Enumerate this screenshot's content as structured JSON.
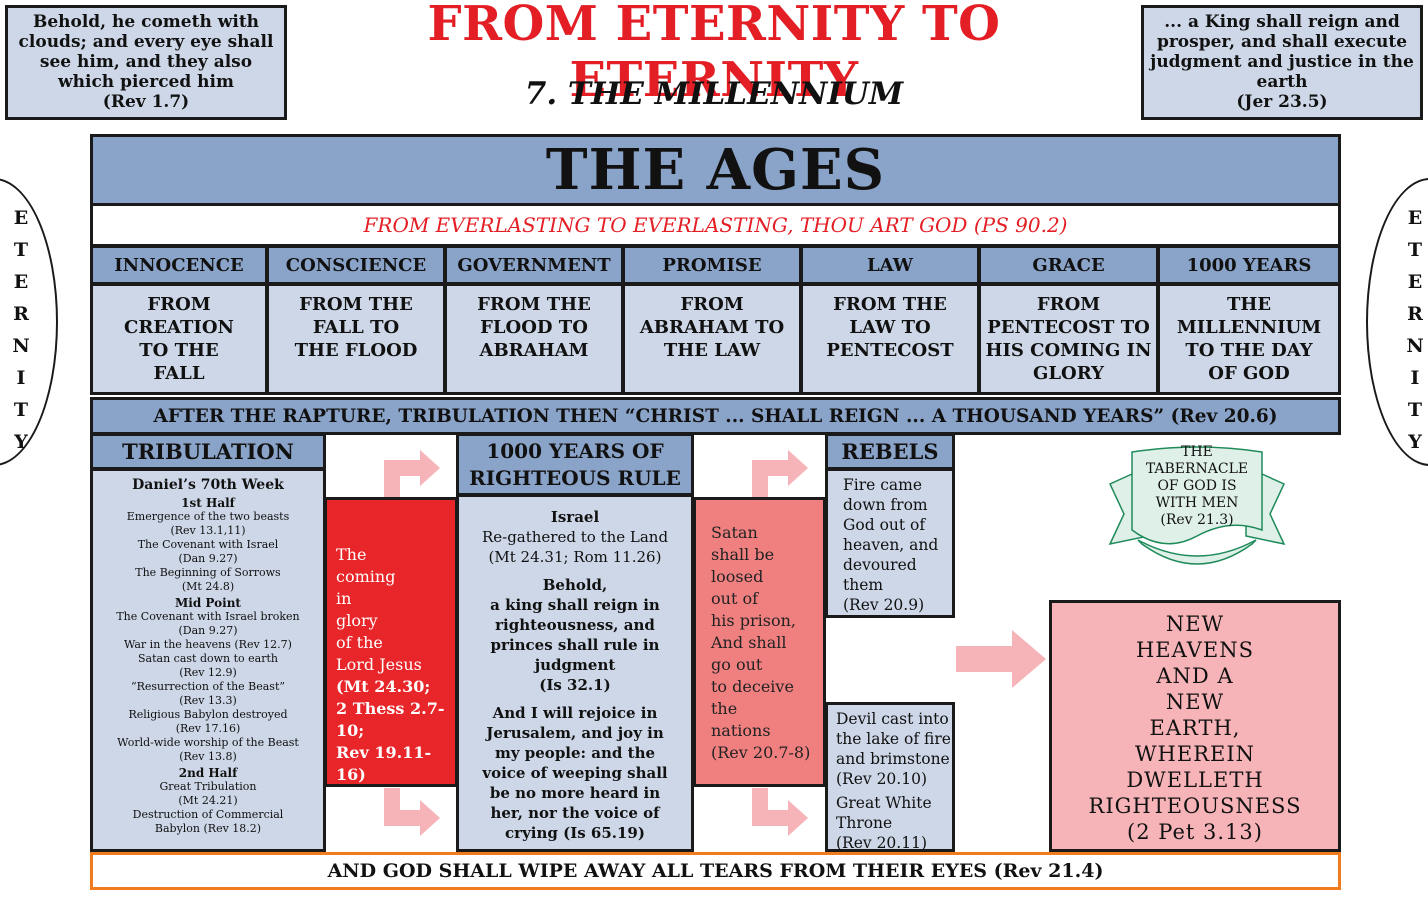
{
  "header": {
    "title": "FROM ETERNITY TO ETERNITY",
    "subtitle": "7. THE MILLENNIUM",
    "left_quote": "Behold, he cometh with clouds; and every eye shall see him, and they also which pierced him",
    "left_ref": "(Rev 1.7)",
    "right_quote": "... a King shall reign and prosper, and shall execute judgment and justice in the earth",
    "right_ref": "(Jer 23.5)"
  },
  "eternity_letters": [
    "E",
    "T",
    "E",
    "R",
    "N",
    "I",
    "T",
    "Y"
  ],
  "ages_banner": {
    "title": "THE AGES",
    "verse": "FROM EVERLASTING TO EVERLASTING, THOU ART GOD (PS 90.2)"
  },
  "ages": [
    {
      "name": "INNOCENCE",
      "lines": [
        "FROM",
        "CREATION",
        "TO THE",
        "FALL"
      ]
    },
    {
      "name": "CONSCIENCE",
      "lines": [
        "FROM THE",
        "FALL TO",
        "THE FLOOD"
      ]
    },
    {
      "name": "GOVERNMENT",
      "lines": [
        "FROM THE",
        "FLOOD TO",
        "ABRAHAM"
      ]
    },
    {
      "name": "PROMISE",
      "lines": [
        "FROM",
        "ABRAHAM TO",
        "THE LAW"
      ]
    },
    {
      "name": "LAW",
      "lines": [
        "FROM THE",
        "LAW TO",
        "PENTECOST"
      ]
    },
    {
      "name": "GRACE",
      "lines": [
        "FROM",
        "PENTECOST TO",
        "HIS COMING IN",
        "GLORY"
      ]
    },
    {
      "name": "1000 YEARS",
      "lines": [
        "THE",
        "MILLENNIUM",
        "TO THE DAY",
        "OF GOD"
      ]
    }
  ],
  "rapture_banner": "AFTER THE RAPTURE, TRIBULATION THEN “CHRIST ... SHALL REIGN ... A THOUSAND YEARS” (Rev 20.6)",
  "tribulation": {
    "heading": "TRIBULATION",
    "week_title": "Daniel’s 70th Week",
    "groups": [
      {
        "title": "1st Half",
        "items": [
          "Emergence of the two beasts",
          "(Rev 13.1,11)",
          "The Covenant with Israel",
          "(Dan 9.27)",
          "The Beginning of Sorrows",
          "(Mt 24.8)"
        ]
      },
      {
        "title": "Mid Point",
        "items": [
          "The Covenant with Israel broken",
          "(Dan 9.27)",
          "War in the heavens (Rev 12.7)",
          "Satan cast down to  earth",
          "(Rev 12.9)",
          "“Resurrection of the Beast”",
          "(Rev 13.3)",
          "Religious Babylon destroyed",
          "(Rev 17.16)",
          "World-wide worship of the Beast",
          "(Rev 13.8)"
        ]
      },
      {
        "title": "2nd Half",
        "items": [
          "Great Tribulation",
          "(Mt 24.21)",
          "Destruction of Commercial",
          "Babylon (Rev 18.2)"
        ]
      }
    ]
  },
  "coming_in_glory": {
    "lines": [
      "The",
      "coming",
      "in",
      "glory",
      "of the",
      "Lord Jesus",
      "(Mt 24.30;",
      "2 Thess 2.7-10;",
      "Rev 19.11-16)"
    ]
  },
  "righteous_rule": {
    "heading_line1": "1000 YEARS OF",
    "heading_line2": "RIGHTEOUS RULE",
    "p1_title": "Israel",
    "p1_lines": [
      "Re-gathered to the Land",
      "(Mt 24.31; Rom 11.26)"
    ],
    "p2_lines": [
      "Behold,",
      "a king shall reign in",
      "righteousness, and",
      "princes shall rule in",
      "judgment",
      "(Is 32.1)"
    ],
    "p3_lines": [
      "And I will rejoice in",
      "Jerusalem, and joy in",
      "my people: and the",
      "voice of weeping shall",
      "be no more heard in",
      "her, nor the voice of",
      "crying (Is 65.19)"
    ]
  },
  "satan_loosed": {
    "lines": [
      "Satan",
      "shall be",
      "loosed",
      "out of",
      "his prison,",
      "And shall",
      "go out",
      "to deceive",
      "the",
      "nations",
      "(Rev 20.7-8)"
    ]
  },
  "rebels": {
    "heading": "REBELS",
    "lines": [
      "Fire came",
      "down from",
      "God out of",
      "heaven, and",
      "devoured",
      "them",
      "(Rev 20.9)"
    ]
  },
  "judgment": {
    "lines1": [
      "Devil cast into",
      "the lake of fire",
      "and brimstone",
      "(Rev 20.10)"
    ],
    "lines2": [
      "Great White",
      "Throne",
      "(Rev 20.11)"
    ]
  },
  "tabernacle": {
    "lines": [
      "THE",
      "TABERNACLE",
      "OF GOD IS",
      "WITH MEN",
      "(Rev 21.3)"
    ]
  },
  "new_heavens": {
    "lines": [
      "NEW",
      "HEAVENS",
      "AND A",
      "NEW",
      "EARTH,",
      "WHEREIN",
      "DWELLETH",
      "RIGHTEOUSNESS",
      "(2 Pet 3.13)"
    ]
  },
  "footer": "AND GOD SHALL WIPE AWAY ALL TEARS FROM THEIR EYES (Rev 21.4)",
  "colors": {
    "title_red": "#e31e24",
    "header_blue": "#8aa3c8",
    "pale_blue": "#cdd7e7",
    "glory_red": "#e8262a",
    "satan_pink": "#f08080",
    "new_earth_pink": "#f6b4b8",
    "arrow_pink": "#f6b4b8",
    "scroll_green": "#dff0e8",
    "footer_orange": "#f07c1e"
  }
}
